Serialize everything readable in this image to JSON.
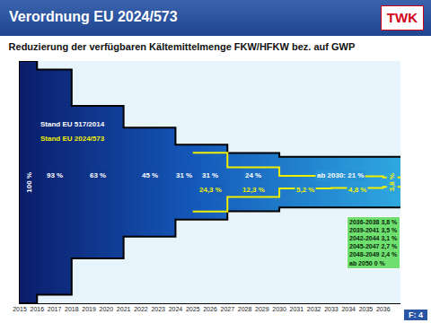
{
  "slide": {
    "heading": "Verordnung EU 2024/573",
    "logo": "TWK",
    "footer": "F: 4"
  },
  "chart_data": {
    "type": "step",
    "title": "Reduzierung der verfügbaren Kältemittelmenge FKW/HFKW bez. auf GWP",
    "xlim": [
      2015,
      2037
    ],
    "xticks": [
      2015,
      2016,
      2017,
      2018,
      2019,
      2020,
      2021,
      2022,
      2023,
      2024,
      2025,
      2026,
      2027,
      2028,
      2029,
      2030,
      2031,
      2032,
      2033,
      2034,
      2035,
      2036
    ],
    "ylim": [
      -100,
      100
    ],
    "yticks": [],
    "y2lim": [
      100,
      -100
    ],
    "y2ticks": [],
    "tick_labels": "x",
    "grid": false,
    "data_labels": true,
    "series": [
      {
        "name": "Stand EU 517/2014",
        "color": "#000000",
        "x": [
          2015,
          2016,
          2018,
          2021,
          2024,
          2025,
          2027,
          2030
        ],
        "values": [
          100,
          93,
          63,
          45,
          31,
          31,
          24,
          21
        ],
        "value_labels": [
          "100 %",
          "93 %",
          "63 %",
          "45 %",
          "31 %",
          "31 %",
          "24 %",
          "ab 2030: 21 %"
        ]
      },
      {
        "name": "Stand EU 2024/573",
        "color": "#f2ee00",
        "x": [
          2025,
          2027,
          2030,
          2033,
          2036
        ],
        "values": [
          24.3,
          12.3,
          5.2,
          4.8,
          3.8
        ],
        "value_labels": [
          "24,3 %",
          "12,3 %",
          "5,2 %",
          "4,8 %",
          "3,8 %"
        ]
      }
    ],
    "annotations": [
      "2036-2038 3,8 %",
      "2039-2041 3,5 %",
      "2042-2044 3,1 %",
      "2045-2047 2,7 %",
      "2048-2049 2,4 %",
      "ab 2050 0 %"
    ]
  }
}
